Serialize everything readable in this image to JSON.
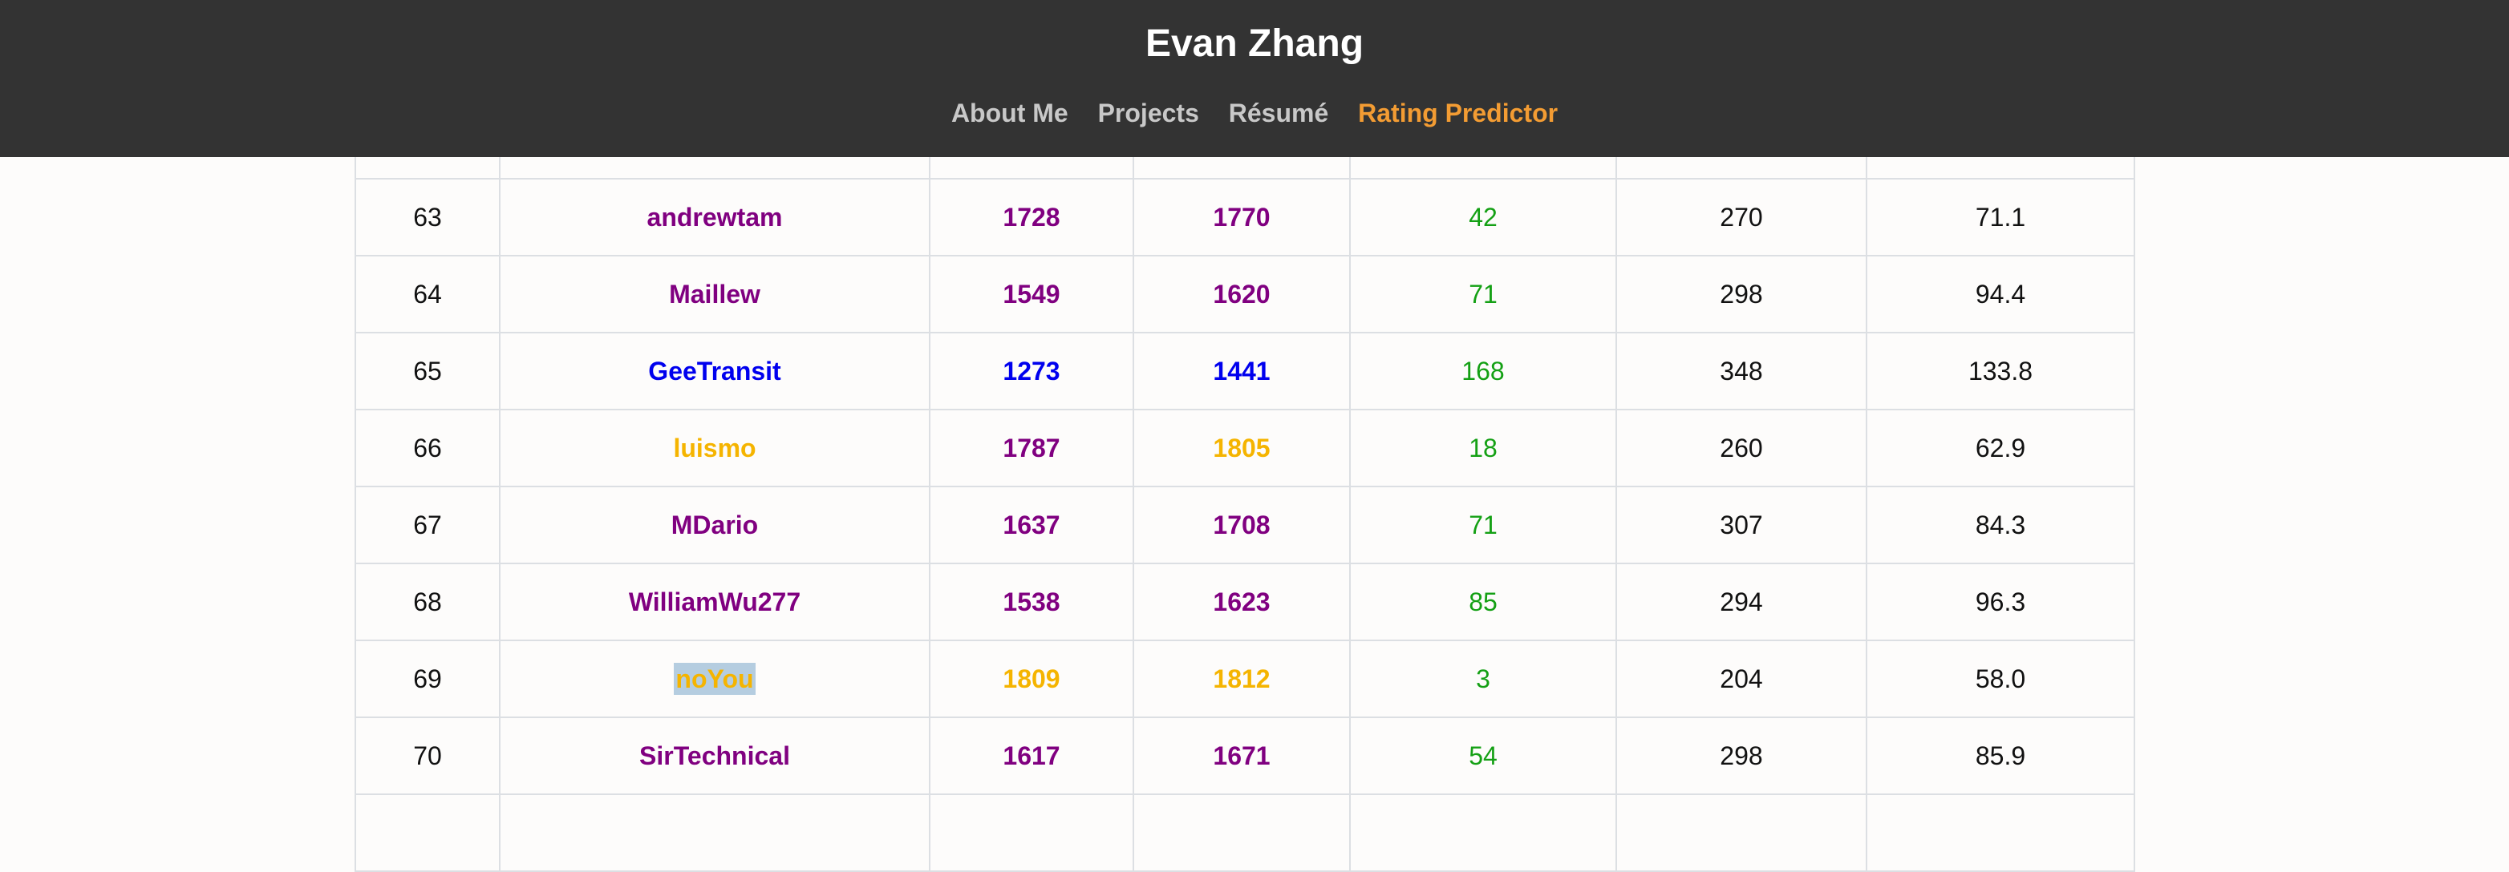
{
  "header": {
    "title": "Evan Zhang",
    "nav": [
      {
        "label": "About Me",
        "active": false
      },
      {
        "label": "Projects",
        "active": false
      },
      {
        "label": "Résumé",
        "active": false
      },
      {
        "label": "Rating Predictor",
        "active": true
      }
    ]
  },
  "colors": {
    "header_bg": "#333333",
    "active_nav": "#f39c33",
    "purple": "#800080",
    "blue": "#0000ee",
    "orange": "#f5b400",
    "green": "#14a014",
    "selection": "#b5cde0"
  },
  "table": {
    "rows": [
      {
        "rank": "63",
        "handle": "andrewtam",
        "old_rating": "1728",
        "new_rating": "1770",
        "delta": "42",
        "col6": "270",
        "col7": "71.1",
        "old_color": "purple",
        "new_color": "purple",
        "handle_color": "purple"
      },
      {
        "rank": "64",
        "handle": "Maillew",
        "old_rating": "1549",
        "new_rating": "1620",
        "delta": "71",
        "col6": "298",
        "col7": "94.4",
        "old_color": "purple",
        "new_color": "purple",
        "handle_color": "purple"
      },
      {
        "rank": "65",
        "handle": "GeeTransit",
        "old_rating": "1273",
        "new_rating": "1441",
        "delta": "168",
        "col6": "348",
        "col7": "133.8",
        "old_color": "blue",
        "new_color": "blue",
        "handle_color": "blue"
      },
      {
        "rank": "66",
        "handle": "luismo",
        "old_rating": "1787",
        "new_rating": "1805",
        "delta": "18",
        "col6": "260",
        "col7": "62.9",
        "old_color": "purple",
        "new_color": "orange",
        "handle_color": "orange"
      },
      {
        "rank": "67",
        "handle": "MDario",
        "old_rating": "1637",
        "new_rating": "1708",
        "delta": "71",
        "col6": "307",
        "col7": "84.3",
        "old_color": "purple",
        "new_color": "purple",
        "handle_color": "purple"
      },
      {
        "rank": "68",
        "handle": "WilliamWu277",
        "old_rating": "1538",
        "new_rating": "1623",
        "delta": "85",
        "col6": "294",
        "col7": "96.3",
        "old_color": "purple",
        "new_color": "purple",
        "handle_color": "purple"
      },
      {
        "rank": "69",
        "handle": "noYou",
        "old_rating": "1809",
        "new_rating": "1812",
        "delta": "3",
        "col6": "204",
        "col7": "58.0",
        "old_color": "orange",
        "new_color": "orange",
        "handle_color": "orange",
        "selected": true
      },
      {
        "rank": "70",
        "handle": "SirTechnical",
        "old_rating": "1617",
        "new_rating": "1671",
        "delta": "54",
        "col6": "298",
        "col7": "85.9",
        "old_color": "purple",
        "new_color": "purple",
        "handle_color": "purple"
      }
    ]
  }
}
